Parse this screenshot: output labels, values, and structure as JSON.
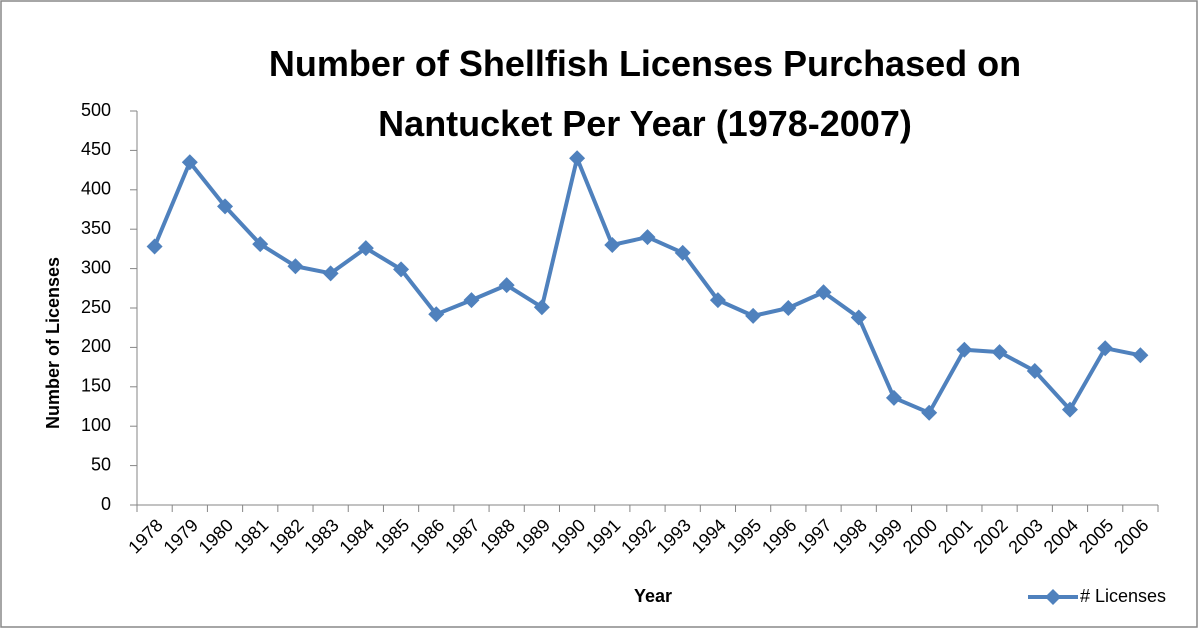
{
  "chart_data": {
    "type": "line",
    "title": "Number of Shellfish Licenses Purchased on Nantucket Per Year (1978-2007)",
    "y_label": "Number of Licenses",
    "x_label": "Year",
    "categories": [
      "1978",
      "1979",
      "1980",
      "1981",
      "1982",
      "1983",
      "1984",
      "1985",
      "1986",
      "1987",
      "1988",
      "1989",
      "1990",
      "1991",
      "1992",
      "1993",
      "1994",
      "1995",
      "1996",
      "1997",
      "1998",
      "1999",
      "2000",
      "2001",
      "2002",
      "2003",
      "2004",
      "2005",
      "2006"
    ],
    "series": [
      {
        "name": "# Licenses",
        "color": "#4f81bd",
        "values": [
          328,
          435,
          379,
          331,
          303,
          294,
          326,
          299,
          242,
          260,
          279,
          251,
          440,
          330,
          340,
          320,
          260,
          240,
          250,
          270,
          238,
          136,
          117,
          197,
          194,
          170,
          121,
          199,
          190
        ]
      }
    ],
    "ylim": [
      0,
      500
    ],
    "yticks": [
      0,
      50,
      100,
      150,
      200,
      250,
      300,
      350,
      400,
      450,
      500
    ],
    "grid": false,
    "legend": "bottom-right"
  }
}
